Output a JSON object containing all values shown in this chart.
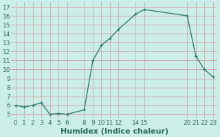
{
  "x": [
    0,
    1,
    2,
    3,
    4,
    5,
    6,
    8,
    9,
    10,
    11,
    12,
    14,
    15,
    20,
    21,
    22,
    23
  ],
  "y": [
    6.0,
    5.8,
    6.0,
    6.3,
    5.0,
    5.1,
    5.0,
    5.5,
    11.0,
    12.7,
    13.5,
    14.5,
    16.2,
    16.7,
    16.0,
    11.5,
    10.0,
    9.2
  ],
  "line_color": "#2e7d6e",
  "bg_color": "#cceee8",
  "grid_color_h": "#d4a0a0",
  "grid_color_v": "#c8b4b4",
  "xlabel": "Humidex (Indice chaleur)",
  "xlim": [
    -0.5,
    23.5
  ],
  "ylim": [
    4.5,
    17.5
  ],
  "yticks": [
    5,
    6,
    7,
    8,
    9,
    10,
    11,
    12,
    13,
    14,
    15,
    16,
    17
  ],
  "xtick_positions": [
    0,
    1,
    2,
    3,
    4,
    5,
    6,
    8,
    9,
    10,
    11,
    12,
    14,
    15,
    20,
    21,
    22,
    23
  ],
  "xtick_labels": [
    "0",
    "1",
    "2",
    "3",
    "4",
    "5",
    "6",
    "8",
    "9",
    "10",
    "11",
    "12",
    "14",
    "15",
    "20",
    "21",
    "22",
    "23"
  ],
  "label_color": "#2e6b5e",
  "tick_fontsize": 6.5,
  "xlabel_fontsize": 8
}
